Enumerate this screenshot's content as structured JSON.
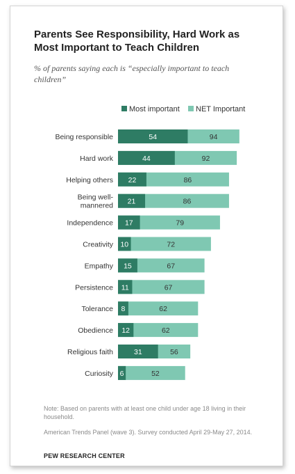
{
  "title": "Parents See Responsibility, Hard Work as Most Important to Teach Children",
  "subtitle": "% of parents saying each is “especially important to teach children”",
  "colors": {
    "most": "#2e7c64",
    "net": "#7fc8b2",
    "label_on_dark": "#ffffff",
    "label_on_light": "#333333"
  },
  "chart_data": {
    "type": "bar",
    "orientation": "horizontal",
    "categories": [
      "Being responsible",
      "Hard work",
      "Helping others",
      "Being well-\nmannered",
      "Independence",
      "Creativity",
      "Empathy",
      "Persistence",
      "Tolerance",
      "Obedience",
      "Religious faith",
      "Curiosity"
    ],
    "series": [
      {
        "name": "Most important",
        "values": [
          54,
          44,
          22,
          21,
          17,
          10,
          15,
          11,
          8,
          12,
          31,
          6
        ]
      },
      {
        "name": "NET Important",
        "values": [
          94,
          92,
          86,
          86,
          79,
          72,
          67,
          67,
          62,
          62,
          56,
          52
        ]
      }
    ],
    "xlim": [
      0,
      100
    ],
    "legend_position": "top",
    "grid": false
  },
  "note": "Note: Based on parents with at least one child under age 18 living in their household.",
  "source": "American Trends Panel (wave 3). Survey conducted April 29-May 27, 2014.",
  "brand": "PEW RESEARCH CENTER"
}
